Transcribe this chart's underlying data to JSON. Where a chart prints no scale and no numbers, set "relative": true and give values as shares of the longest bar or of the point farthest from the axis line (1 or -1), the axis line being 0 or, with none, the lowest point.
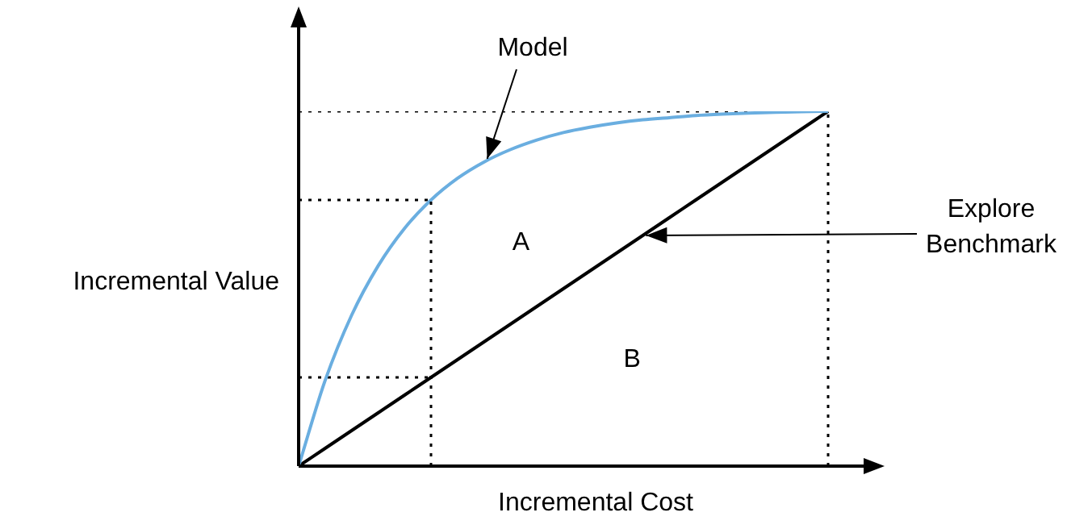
{
  "chart_data": {
    "type": "line",
    "xlabel": "Incremental Cost",
    "ylabel": "Incremental Value",
    "relative": true,
    "legend": false,
    "marker": "none",
    "categories": [
      null,
      null,
      null,
      null,
      null,
      null,
      null,
      null,
      null,
      null,
      null,
      null,
      null,
      null,
      null,
      null,
      null,
      null,
      null,
      null,
      null
    ],
    "series": [
      {
        "name": "Model",
        "color": "#6aaee0",
        "values": [
          0,
          0.241,
          0.425,
          0.564,
          0.67,
          0.75,
          0.811,
          0.857,
          0.892,
          0.919,
          0.94,
          0.955,
          0.967,
          0.976,
          0.982,
          0.988,
          0.992,
          0.995,
          0.997,
          0.999,
          1
        ]
      },
      {
        "name": "Explore Benchmark",
        "color": "#000000",
        "values": [
          0,
          0.05,
          0.1,
          0.15,
          0.2,
          0.25,
          0.3,
          0.35,
          0.4,
          0.45,
          0.5,
          0.55,
          0.6,
          0.65,
          0.7,
          0.75,
          0.8,
          0.85,
          0.9,
          0.95,
          1
        ]
      },
      {
        "color": "#000000",
        "line_style": "dotted",
        "values": [
          1,
          1,
          1,
          1,
          1,
          1,
          1,
          1,
          1,
          1,
          1,
          1,
          1,
          1,
          1,
          1,
          1,
          1,
          1,
          1,
          1
        ]
      },
      {
        "color": "#000000",
        "line_style": "dotted",
        "values": [
          0.75,
          0.75,
          0.75,
          0.75,
          0.75,
          0.75,
          null,
          null,
          null,
          null,
          null,
          null,
          null,
          null,
          null,
          null,
          null,
          null,
          null,
          null,
          null
        ]
      },
      {
        "color": "#000000",
        "line_style": "dotted",
        "values": [
          0.25,
          0.25,
          0.25,
          0.25,
          0.25,
          0.25,
          null,
          null,
          null,
          null,
          null,
          null,
          null,
          null,
          null,
          null,
          null,
          null,
          null,
          null,
          null
        ]
      }
    ],
    "annotations": [
      "A",
      "B"
    ]
  }
}
